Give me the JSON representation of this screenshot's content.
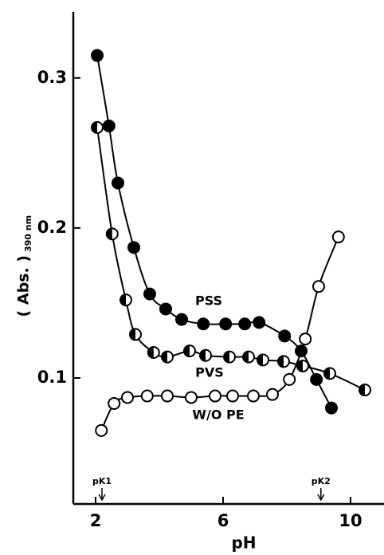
{
  "chart_data": {
    "type": "line",
    "x_label": "pH",
    "y_label": "( Abs. )",
    "y_label_sub": "390 nm",
    "xlim": [
      1.3,
      11.05
    ],
    "ylim": [
      0.016,
      0.344
    ],
    "xticks": [
      2,
      6,
      10
    ],
    "yticks": [
      0.1,
      0.2,
      0.3
    ],
    "series": [
      {
        "name": "PSS",
        "color": "#000",
        "marker": "filled",
        "x": [
          2.05,
          2.42,
          2.7,
          3.2,
          3.7,
          4.2,
          4.7,
          5.38,
          6.08,
          6.68,
          7.13,
          7.93,
          8.45,
          8.93,
          9.4
        ],
        "values": [
          0.315,
          0.268,
          0.23,
          0.187,
          0.156,
          0.146,
          0.139,
          0.136,
          0.136,
          0.136,
          0.137,
          0.128,
          0.118,
          0.099,
          0.08
        ]
      },
      {
        "name": "PVS",
        "color": "#000",
        "marker": "half",
        "x": [
          2.05,
          2.52,
          2.95,
          3.25,
          3.82,
          4.25,
          4.95,
          5.45,
          6.2,
          6.8,
          7.25,
          7.9,
          8.5,
          9.35,
          10.45
        ],
        "values": [
          0.267,
          0.196,
          0.152,
          0.129,
          0.117,
          0.114,
          0.118,
          0.115,
          0.114,
          0.114,
          0.112,
          0.111,
          0.108,
          0.103,
          0.092
        ]
      },
      {
        "name": "W/O PE",
        "color": "#000",
        "marker": "open",
        "x": [
          2.18,
          2.58,
          3.0,
          3.62,
          4.25,
          5.0,
          5.75,
          6.3,
          6.95,
          7.55,
          8.08,
          8.58,
          9.0,
          9.62
        ],
        "values": [
          0.065,
          0.083,
          0.087,
          0.088,
          0.088,
          0.087,
          0.088,
          0.088,
          0.088,
          0.089,
          0.099,
          0.126,
          0.161,
          0.194
        ]
      }
    ],
    "pk_markers": [
      {
        "label": "pK1",
        "x": 2.2
      },
      {
        "label": "pK2",
        "x": 9.07
      }
    ]
  }
}
